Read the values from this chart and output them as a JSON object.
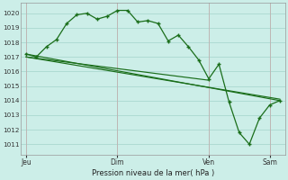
{
  "bg_color": "#cceee8",
  "grid_color": "#aad8d0",
  "line_color": "#1a6e1a",
  "marker_color": "#1a6e1a",
  "ylabel_ticks": [
    1011,
    1012,
    1013,
    1014,
    1015,
    1016,
    1017,
    1018,
    1019,
    1020
  ],
  "ylim": [
    1010.3,
    1020.7
  ],
  "xlabel": "Pression niveau de la mer( hPa )",
  "xtick_labels": [
    "Jeu",
    "Dim",
    "Ven",
    "Sam"
  ],
  "xtick_positions": [
    0,
    9,
    18,
    24
  ],
  "series1_x": [
    0,
    1,
    2,
    3,
    4,
    5,
    6,
    7,
    8,
    9,
    10,
    11,
    12,
    13,
    14,
    15,
    16,
    17,
    18,
    19,
    20,
    21,
    22,
    23,
    24,
    25
  ],
  "series1_y": [
    1017.2,
    1017.0,
    1017.7,
    1018.2,
    1019.3,
    1019.9,
    1020.0,
    1019.6,
    1019.8,
    1020.2,
    1020.2,
    1019.4,
    1019.5,
    1019.3,
    1018.1,
    1018.5,
    1017.7,
    1016.8,
    1015.5,
    1016.5,
    1013.9,
    1011.8,
    1011.0,
    1012.8,
    1013.7,
    1014.0
  ],
  "series2_x": [
    0,
    25
  ],
  "series2_y": [
    1017.2,
    1014.0
  ],
  "series3_x": [
    0,
    18
  ],
  "series3_y": [
    1017.0,
    1015.4
  ],
  "series4_x": [
    0,
    25
  ],
  "series4_y": [
    1017.0,
    1014.1
  ],
  "xlim": [
    -0.5,
    25.5
  ],
  "vline_positions": [
    0,
    9,
    18,
    24
  ],
  "vline_color": "#c0b0b0"
}
